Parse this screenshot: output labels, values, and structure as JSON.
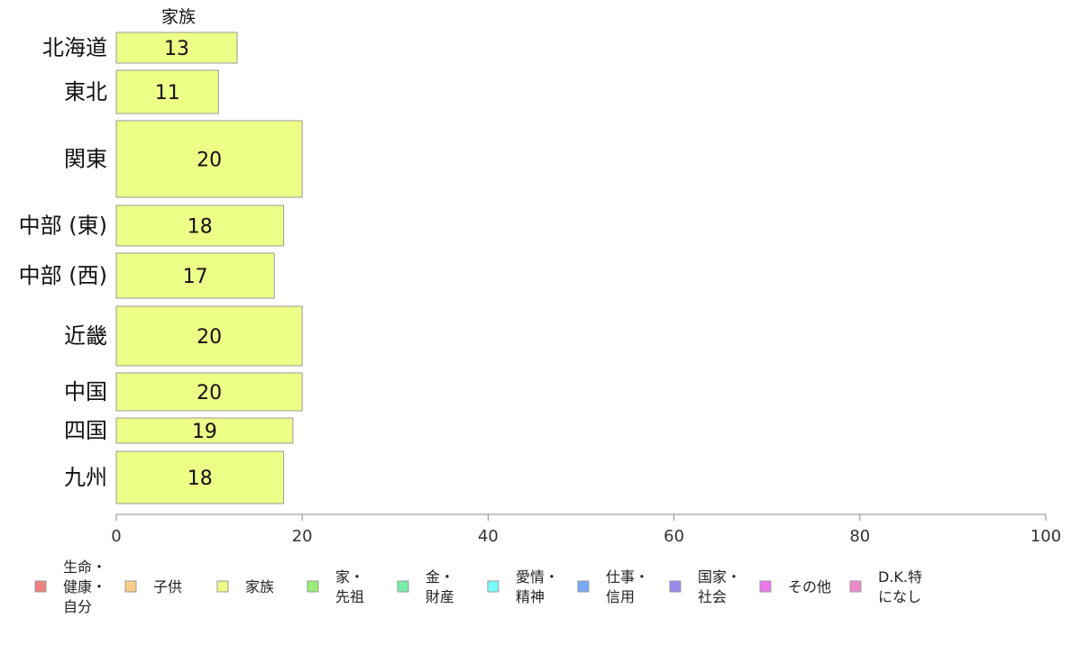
{
  "chart_data": {
    "type": "bar",
    "orientation": "horizontal",
    "stacked": true,
    "series_title": "家族",
    "categories": [
      "北海道",
      "東北",
      "関東",
      "中部 (東)",
      "中部 (西)",
      "近畿",
      "中国",
      "四国",
      "九州"
    ],
    "series": [
      {
        "name": "家族",
        "color": "#eeff88",
        "values": [
          13,
          11,
          20,
          18,
          17,
          20,
          20,
          19,
          18
        ]
      }
    ],
    "xlim": [
      0,
      100
    ],
    "xticks": [
      0,
      20,
      40,
      60,
      80,
      100
    ],
    "grid": false,
    "legend_position": "bottom",
    "legend": [
      {
        "lines": [
          "生命・",
          "健康・",
          "自分"
        ],
        "color": "#f08080"
      },
      {
        "lines": [
          "子供"
        ],
        "color": "#ffcc88"
      },
      {
        "lines": [
          "家族"
        ],
        "color": "#eeff88"
      },
      {
        "lines": [
          "家・",
          "先祖"
        ],
        "color": "#99ee77"
      },
      {
        "lines": [
          "金・",
          "財産"
        ],
        "color": "#77eeaa"
      },
      {
        "lines": [
          "愛情・",
          "精神"
        ],
        "color": "#77ffff"
      },
      {
        "lines": [
          "仕事・",
          "信用"
        ],
        "color": "#77aaff"
      },
      {
        "lines": [
          "国家・",
          "社会"
        ],
        "color": "#9988ee"
      },
      {
        "lines": [
          "その他"
        ],
        "color": "#ee77ee"
      },
      {
        "lines": [
          "D.K.特",
          "になし"
        ],
        "color": "#ee88cc"
      }
    ]
  }
}
